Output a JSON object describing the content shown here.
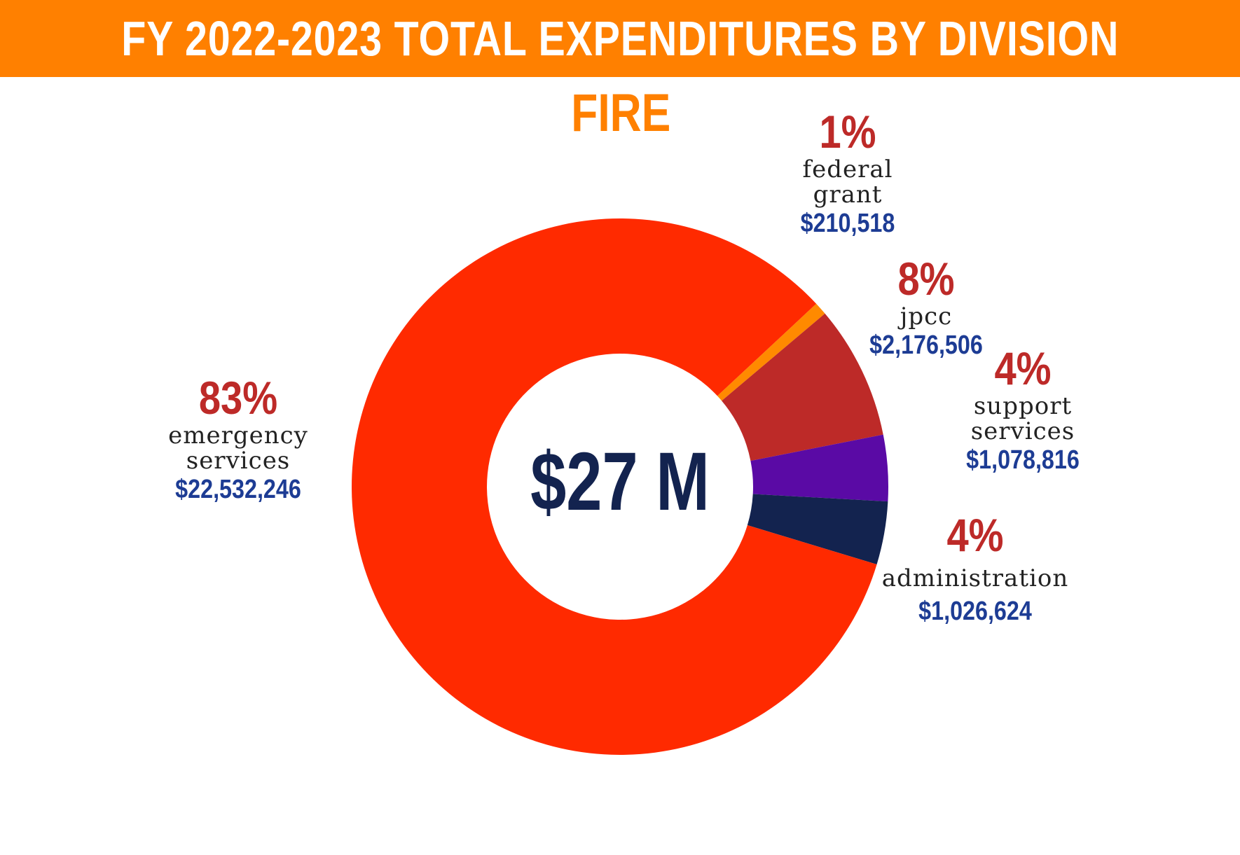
{
  "header": {
    "title": "FY 2022-2023 TOTAL EXPENDITURES BY DIVISION"
  },
  "chart_data": {
    "type": "pie",
    "title": "FY 2022-2023 TOTAL EXPENDITURES BY DIVISION",
    "subtitle": "FIRE",
    "center_label": "$27 M",
    "slices": [
      {
        "key": "federal",
        "name": "federal grant",
        "name_lines": [
          "federal",
          "grant"
        ],
        "percent_label": "1%",
        "amount_label": "$210,518",
        "value": 210518,
        "color": "#ff8a00"
      },
      {
        "key": "jpcc",
        "name": "jpcc",
        "name_lines": [
          "jpcc"
        ],
        "percent_label": "8%",
        "amount_label": "$2,176,506",
        "value": 2176506,
        "color": "#bd2a28"
      },
      {
        "key": "support",
        "name": "support services",
        "name_lines": [
          "support",
          "services"
        ],
        "percent_label": "4%",
        "amount_label": "$1,078,816",
        "value": 1078816,
        "color": "#5a0aa5"
      },
      {
        "key": "admin",
        "name": "administration",
        "name_lines": [
          "administration"
        ],
        "percent_label": "4%",
        "amount_label": "$1,026,624",
        "value": 1026624,
        "color": "#13234f"
      },
      {
        "key": "emergency",
        "name": "emergency services",
        "name_lines": [
          "emergency",
          "services"
        ],
        "percent_label": "83%",
        "amount_label": "$22,532,246",
        "value": 22532246,
        "color": "#ff2a00"
      }
    ]
  }
}
